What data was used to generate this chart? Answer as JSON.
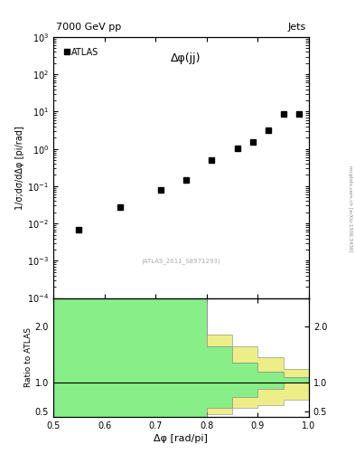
{
  "title_left": "7000 GeV pp",
  "title_right": "Jets",
  "annotation": "Δφ(jj)",
  "ref_label": "(ATLAS_2011_S8971293)",
  "ylabel_main": "1/σ;dσ/dΔφ [pi/rad]",
  "ylabel_ratio": "Ratio to ATLAS",
  "xlabel": "Δφ [rad/pi]",
  "legend_label": "ATLAS",
  "side_text": "mcplots.cern.ch [arXiv:1306.3436]",
  "data_x": [
    0.55,
    0.63,
    0.71,
    0.76,
    0.81,
    0.86,
    0.89,
    0.92,
    0.95,
    0.98
  ],
  "data_y": [
    0.007,
    0.028,
    0.08,
    0.15,
    0.5,
    1.05,
    1.5,
    3.2,
    8.5,
    8.5
  ],
  "xlim": [
    0.5,
    1.0
  ],
  "ylim_main": [
    0.0001,
    1000.0
  ],
  "ylim_ratio": [
    0.4,
    2.5
  ],
  "ratio_yticks": [
    0.5,
    1.0,
    2.0
  ],
  "green_color": "#88EE88",
  "yellow_color": "#EEEE88",
  "bin_edges": [
    0.5,
    0.55,
    0.6,
    0.65,
    0.7,
    0.75,
    0.8,
    0.85,
    0.9,
    0.95,
    1.0
  ],
  "green_lo": [
    0.4,
    0.4,
    0.4,
    0.4,
    0.4,
    0.4,
    0.55,
    0.75,
    0.9,
    1.0
  ],
  "green_hi": [
    2.5,
    2.5,
    2.5,
    2.5,
    2.5,
    2.5,
    1.65,
    1.35,
    1.2,
    1.1
  ],
  "yellow_lo": [
    0.4,
    0.4,
    0.4,
    0.4,
    0.4,
    0.4,
    0.45,
    0.55,
    0.6,
    0.7
  ],
  "yellow_hi": [
    2.5,
    2.5,
    2.5,
    2.5,
    2.5,
    2.5,
    1.85,
    1.65,
    1.45,
    1.25
  ]
}
